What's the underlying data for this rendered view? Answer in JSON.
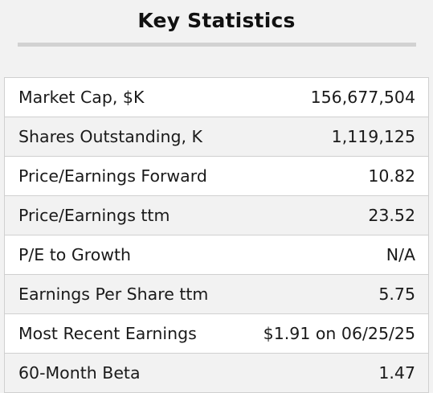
{
  "title": "Key Statistics",
  "rows": [
    {
      "label": "Market Cap, $K",
      "value": "156,677,504"
    },
    {
      "label": "Shares Outstanding, K",
      "value": "1,119,125"
    },
    {
      "label": "Price/Earnings Forward",
      "value": "10.82"
    },
    {
      "label": "Price/Earnings ttm",
      "value": "23.52"
    },
    {
      "label": "P/E to Growth",
      "value": "N/A"
    },
    {
      "label": "Earnings Per Share ttm",
      "value": "5.75"
    },
    {
      "label": "Most Recent Earnings",
      "value": "$1.91 on 06/25/25"
    },
    {
      "label": "60-Month Beta",
      "value": "1.47"
    }
  ]
}
